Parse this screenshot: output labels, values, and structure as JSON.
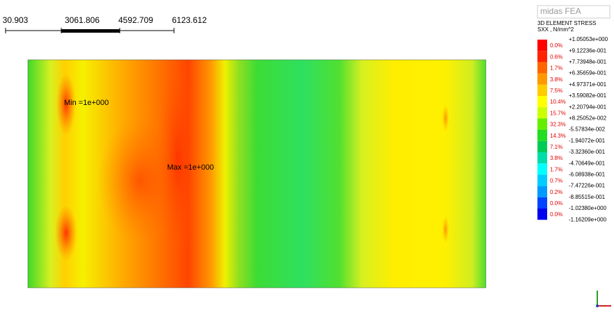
{
  "scale_bar": {
    "labels": [
      "30.903",
      "3061.806",
      "4592.709",
      "6123.612"
    ]
  },
  "plot": {
    "min_label": "Min =1e+000",
    "max_label": "Max =1e+000"
  },
  "legend": {
    "brand": "midas FEA",
    "title": "3D ELEMENT STRESS",
    "subtitle": "SXX , N/mm^2",
    "values": [
      "+1.05053e+000",
      "+9.12236e-001",
      "+7.73948e-001",
      "+6.35659e-001",
      "+4.97371e-001",
      "+3.59082e-001",
      "+2.20794e-001",
      "+8.25052e-002",
      "-5.57834e-002",
      "-1.94072e-001",
      "-3.32360e-001",
      "-4.70649e-001",
      "-6.08938e-001",
      "-7.47226e-001",
      "-8.85515e-001",
      "-1.02380e+000",
      "-1.16209e+000"
    ],
    "percents": [
      "0.0%",
      "0.6%",
      "1.7%",
      "3.8%",
      "7.5%",
      "10.4%",
      "15.7%",
      "32.3%",
      "14.3%",
      "7.1%",
      "3.8%",
      "1.7%",
      "0.7%",
      "0.2%",
      "0.0%",
      "0.0%"
    ],
    "colors": [
      "#ff0000",
      "#ff2200",
      "#ff6600",
      "#ff9900",
      "#ffcc00",
      "#ffff00",
      "#ccff00",
      "#66ee00",
      "#22dd22",
      "#00cc55",
      "#00ddaa",
      "#00ffff",
      "#00ccff",
      "#0099ff",
      "#0044ff",
      "#0000ee"
    ]
  }
}
